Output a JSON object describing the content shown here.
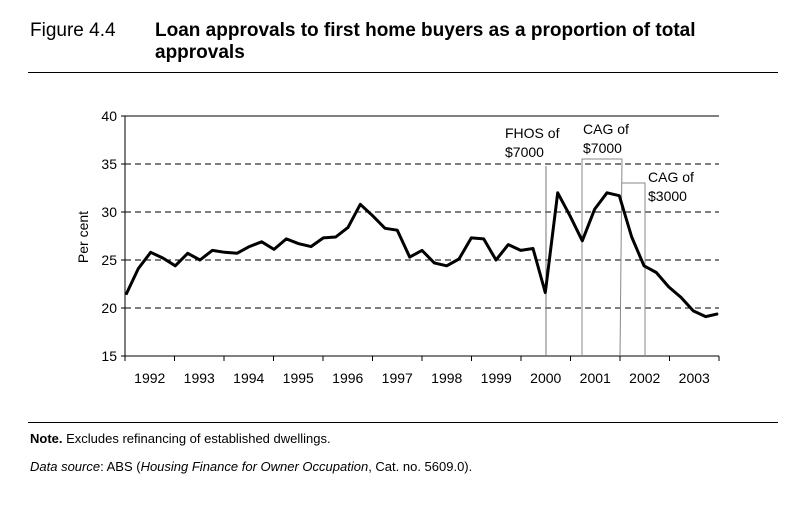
{
  "figure_label": "Figure 4.4",
  "title": "Loan approvals to first home buyers as a proportion of total approvals",
  "note_label": "Note.",
  "note_text": " Excludes refinancing of established dwellings.",
  "source": {
    "label": "Data source",
    "mid": ": ABS (",
    "pub": "Housing Finance for Owner Occupation",
    "end": ", Cat. no. 5609.0)."
  },
  "chart_data": {
    "type": "line",
    "title": "Loan approvals to first home buyers as a proportion of total approvals",
    "xlabel": "",
    "ylabel": "Per cent",
    "ylim": [
      15,
      40
    ],
    "yticks": [
      15,
      20,
      25,
      30,
      35,
      40
    ],
    "grid": "dashed horizontal",
    "x_tick_labels": [
      "1992",
      "1993",
      "1994",
      "1995",
      "1996",
      "1997",
      "1998",
      "1999",
      "2000",
      "2001",
      "2002",
      "2003"
    ],
    "frequency": "quarterly",
    "values": [
      21.4,
      24.1,
      25.8,
      25.2,
      24.4,
      25.7,
      25.0,
      26.0,
      25.8,
      25.7,
      26.4,
      26.9,
      26.1,
      27.2,
      26.7,
      26.4,
      27.3,
      27.4,
      28.4,
      30.8,
      29.6,
      28.3,
      28.1,
      25.3,
      26.0,
      24.7,
      24.4,
      25.1,
      27.3,
      27.2,
      25.0,
      26.6,
      26.0,
      26.2,
      21.6,
      32.0,
      29.6,
      27.0,
      30.3,
      32.0,
      31.7,
      27.4,
      24.4,
      23.7,
      22.2,
      21.1,
      19.7,
      19.1,
      19.4
    ],
    "annotations": [
      {
        "line1": "FHOS of",
        "line2": "$7000"
      },
      {
        "line1": "CAG of",
        "line2": "$7000"
      },
      {
        "line1": "CAG of",
        "line2": "$3000"
      }
    ]
  }
}
